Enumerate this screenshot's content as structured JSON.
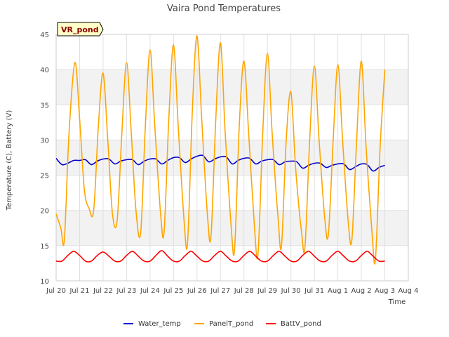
{
  "chart_data": {
    "type": "line",
    "title": "Vaira Pond Temperatures",
    "badge": "VR_pond",
    "xlabel": "Time",
    "ylabel": "Temperature (C), Battery (V)",
    "ylim": [
      10,
      45
    ],
    "yticks": [
      10,
      15,
      20,
      25,
      30,
      35,
      40,
      45
    ],
    "xlim": [
      0,
      15
    ],
    "x_tick_labels": [
      "Jul 20",
      "Jul 21",
      "Jul 22",
      "Jul 23",
      "Jul 24",
      "Jul 25",
      "Jul 26",
      "Jul 27",
      "Jul 28",
      "Jul 29",
      "Jul 30",
      "Jul 31",
      "Aug 1",
      "Aug 2",
      "Aug 3",
      "Aug 4"
    ],
    "x_unit": "days from Jul 20",
    "grid": "alternating horizontal bands",
    "legend_position": "bottom-center",
    "series": [
      {
        "name": "Water_temp",
        "color": "#0000cd",
        "x": [
          0.0,
          0.25,
          0.5,
          0.75,
          1.0,
          1.25,
          1.5,
          1.75,
          2.0,
          2.25,
          2.5,
          2.75,
          3.0,
          3.25,
          3.5,
          3.75,
          4.0,
          4.25,
          4.5,
          4.75,
          5.0,
          5.25,
          5.5,
          5.75,
          6.0,
          6.25,
          6.5,
          6.75,
          7.0,
          7.25,
          7.5,
          7.75,
          8.0,
          8.25,
          8.5,
          8.75,
          9.0,
          9.25,
          9.5,
          9.75,
          10.0,
          10.25,
          10.5,
          10.75,
          11.0,
          11.25,
          11.5,
          11.75,
          12.0,
          12.25,
          12.5,
          12.75,
          13.0,
          13.25,
          13.5,
          13.75,
          14.0
        ],
        "y": [
          27.4,
          26.5,
          26.7,
          27.1,
          27.1,
          27.2,
          26.5,
          27.0,
          27.3,
          27.3,
          26.6,
          27.0,
          27.2,
          27.2,
          26.5,
          27.0,
          27.3,
          27.3,
          26.6,
          27.1,
          27.5,
          27.5,
          26.8,
          27.3,
          27.7,
          27.8,
          26.9,
          27.3,
          27.6,
          27.6,
          26.6,
          27.1,
          27.4,
          27.4,
          26.6,
          27.0,
          27.2,
          27.2,
          26.5,
          26.9,
          27.0,
          26.9,
          26.0,
          26.4,
          26.7,
          26.7,
          26.1,
          26.4,
          26.6,
          26.6,
          25.8,
          26.2,
          26.6,
          26.5,
          25.6,
          26.1,
          26.4
        ]
      },
      {
        "name": "PanelT_pond",
        "color": "#ffa500",
        "x": [
          0.0,
          0.2,
          0.35,
          0.55,
          0.8,
          1.0,
          1.2,
          1.4,
          1.6,
          1.8,
          2.0,
          2.2,
          2.4,
          2.6,
          2.8,
          3.0,
          3.2,
          3.4,
          3.6,
          3.8,
          4.0,
          4.2,
          4.45,
          4.6,
          4.8,
          5.0,
          5.2,
          5.45,
          5.6,
          5.8,
          6.0,
          6.2,
          6.45,
          6.6,
          6.8,
          7.0,
          7.2,
          7.45,
          7.6,
          7.8,
          8.0,
          8.2,
          8.45,
          8.6,
          8.8,
          9.0,
          9.2,
          9.45,
          9.6,
          9.8,
          10.0,
          10.2,
          10.45,
          10.6,
          10.8,
          11.0,
          11.2,
          11.45,
          11.6,
          11.8,
          12.0,
          12.2,
          12.45,
          12.6,
          12.8,
          13.0,
          13.2,
          13.45,
          13.6,
          13.8,
          14.0
        ],
        "y": [
          19.5,
          17.5,
          15.8,
          31.0,
          41.0,
          33.0,
          23.0,
          20.3,
          20.0,
          32.0,
          39.5,
          30.0,
          19.5,
          18.6,
          31.0,
          41.0,
          31.0,
          20.0,
          16.8,
          32.0,
          42.8,
          32.0,
          19.5,
          17.0,
          33.0,
          43.5,
          32.0,
          18.5,
          15.5,
          34.0,
          44.8,
          33.0,
          19.0,
          16.5,
          33.0,
          43.8,
          31.0,
          18.0,
          14.4,
          32.0,
          41.2,
          31.0,
          17.5,
          13.9,
          31.0,
          42.3,
          31.0,
          19.0,
          15.0,
          30.0,
          36.8,
          26.0,
          17.0,
          14.8,
          30.0,
          40.5,
          30.0,
          18.5,
          16.8,
          30.0,
          40.7,
          30.0,
          18.0,
          16.0,
          30.0,
          41.2,
          29.0,
          17.0,
          13.0,
          29.0,
          40.0
        ]
      },
      {
        "name": "BattV_pond",
        "color": "#ff0000",
        "x": [
          0.0,
          0.25,
          0.5,
          0.75,
          1.0,
          1.25,
          1.5,
          1.75,
          2.0,
          2.25,
          2.5,
          2.75,
          3.0,
          3.25,
          3.5,
          3.75,
          4.0,
          4.25,
          4.5,
          4.75,
          5.0,
          5.25,
          5.5,
          5.75,
          6.0,
          6.25,
          6.5,
          6.75,
          7.0,
          7.25,
          7.5,
          7.75,
          8.0,
          8.25,
          8.5,
          8.75,
          9.0,
          9.25,
          9.5,
          9.75,
          10.0,
          10.25,
          10.5,
          10.75,
          11.0,
          11.25,
          11.5,
          11.75,
          12.0,
          12.25,
          12.5,
          12.75,
          13.0,
          13.25,
          13.5,
          13.75,
          14.0
        ],
        "y": [
          12.8,
          12.8,
          13.6,
          14.2,
          13.6,
          12.8,
          12.8,
          13.6,
          14.1,
          13.5,
          12.8,
          12.8,
          13.6,
          14.2,
          13.5,
          12.8,
          12.8,
          13.6,
          14.3,
          13.5,
          12.8,
          12.8,
          13.6,
          14.2,
          13.5,
          12.8,
          12.8,
          13.6,
          14.2,
          13.5,
          12.8,
          12.8,
          13.6,
          14.2,
          13.5,
          12.8,
          12.8,
          13.6,
          14.2,
          13.5,
          12.8,
          12.8,
          13.6,
          14.2,
          13.5,
          12.8,
          12.8,
          13.6,
          14.2,
          13.5,
          12.8,
          12.8,
          13.6,
          14.2,
          13.5,
          12.8,
          12.8
        ]
      }
    ]
  }
}
